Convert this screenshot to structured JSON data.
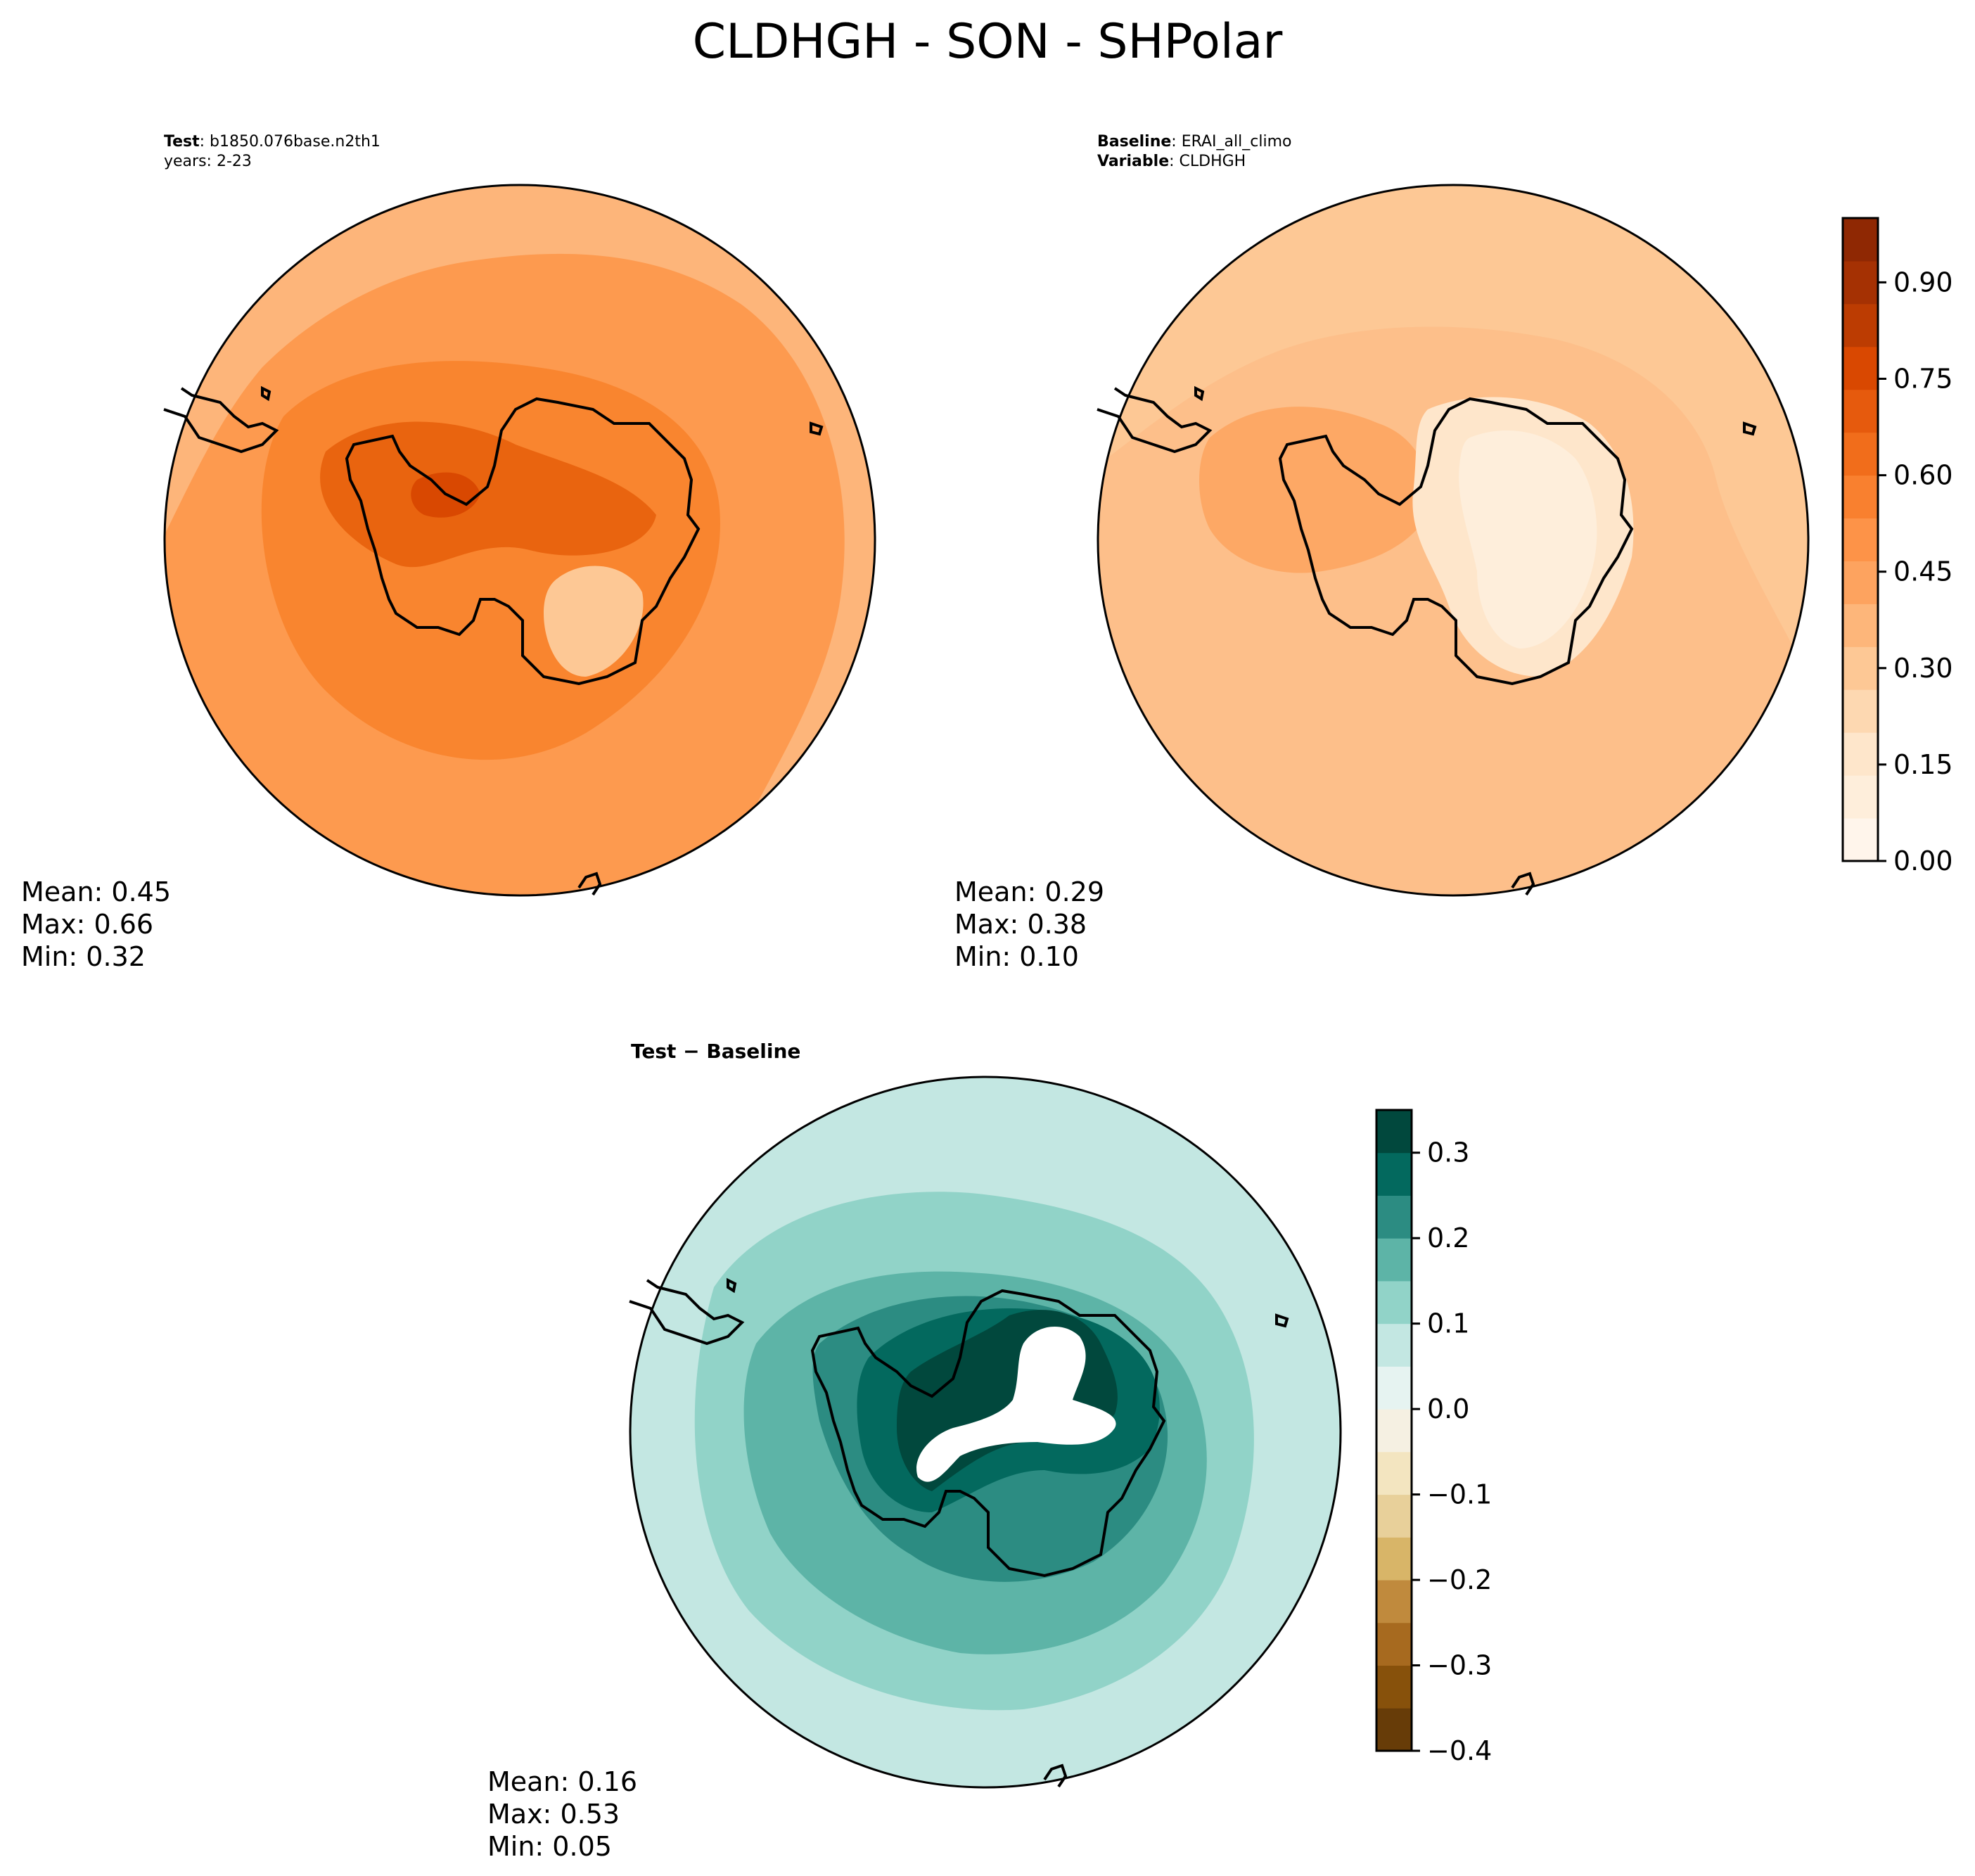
{
  "title": "CLDHGH - SON - SHPolar",
  "test_panel": {
    "label_bold": "Test",
    "label_value": "b1850.076base.n2th1",
    "years": "years: 2-23",
    "stats": {
      "mean": "Mean:  0.45",
      "max": "Max:  0.66",
      "min": "Min:  0.32"
    }
  },
  "baseline_panel": {
    "label_bold": "Baseline",
    "label_value": "ERAI_all_climo",
    "variable_bold": "Variable",
    "variable_value": "CLDHGH",
    "stats": {
      "mean": "Mean:  0.29",
      "max": "Max:  0.38",
      "min": "Min:  0.10"
    }
  },
  "diff_panel": {
    "title_left": "Test",
    "title_op": "−",
    "title_right": "Baseline",
    "stats": {
      "mean": "Mean:  0.16",
      "max": "Max:  0.53",
      "min": "Min:  0.05"
    }
  },
  "colorbar_main": {
    "ticks": [
      "0.00",
      "0.15",
      "0.30",
      "0.45",
      "0.60",
      "0.75",
      "0.90"
    ],
    "colors": [
      "#fff5eb",
      "#feeedb",
      "#fee6cb",
      "#fdd8b1",
      "#fdc895",
      "#fdb67a",
      "#fda35f",
      "#fd9348",
      "#f9802f",
      "#f16d1b",
      "#e65a0d",
      "#d94801",
      "#bc3c02",
      "#a53103",
      "#8f2803"
    ]
  },
  "colorbar_diff": {
    "ticks": [
      "−0.4",
      "−0.3",
      "−0.2",
      "−0.1",
      "0.0",
      "0.1",
      "0.2",
      "0.3"
    ],
    "colors": [
      "#673c08",
      "#87510b",
      "#a76a1f",
      "#c08a3d",
      "#d8b568",
      "#e8d09a",
      "#f3e5c0",
      "#f5f0e2",
      "#e6f3f1",
      "#c3e7e2",
      "#91d3c8",
      "#5db4a7",
      "#2c8c82",
      "#03695e",
      "#01483d"
    ]
  },
  "map_colors": {
    "test_base": "#fd9a4f",
    "test_outer": "#fdb57a",
    "test_ring": "#f9852f",
    "test_core": "#e9640f",
    "test_peak": "#d94801",
    "test_light": "#fdc895",
    "base_base": "#fdbf8a",
    "base_outer": "#fdc895",
    "base_ring": "#fda865",
    "base_light": "#fee6cb",
    "base_lighter": "#feeedb",
    "diff_base": "#c3e7e2",
    "diff_ring1": "#91d3c8",
    "diff_ring2": "#5db4a7",
    "diff_ring3": "#2c8c82",
    "diff_ring4": "#03695e",
    "diff_ring5": "#01483d",
    "diff_center": "#ffffff"
  }
}
